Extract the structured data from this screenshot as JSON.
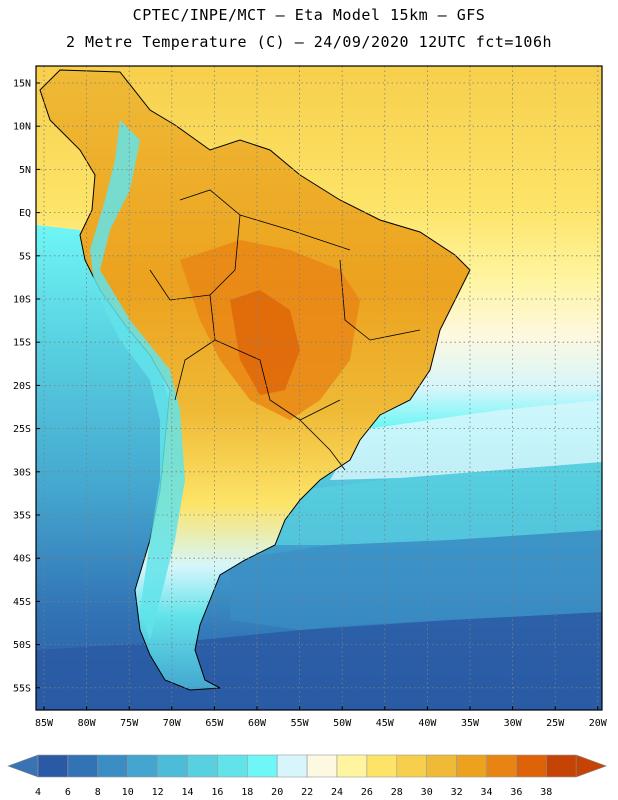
{
  "title_line1": "CPTEC/INPE/MCT –  Eta Model 15km – GFS",
  "title_line2": "2 Metre Temperature (C) – 24/09/2020 12UTC fct=106h",
  "lat_labels": [
    "15N",
    "10N",
    "5N",
    "EQ",
    "5S",
    "10S",
    "15S",
    "20S",
    "25S",
    "30S",
    "35S",
    "40S",
    "45S",
    "50S",
    "55S"
  ],
  "lon_labels": [
    "85W",
    "80W",
    "75W",
    "70W",
    "65W",
    "60W",
    "55W",
    "50W",
    "45W",
    "40W",
    "35W",
    "30W",
    "25W",
    "20W"
  ],
  "colorbar": {
    "labels": [
      "4",
      "6",
      "8",
      "10",
      "12",
      "14",
      "16",
      "18",
      "20",
      "22",
      "24",
      "26",
      "28",
      "30",
      "32",
      "34",
      "36",
      "38"
    ],
    "colors": [
      "#2a5aa5",
      "#3173b5",
      "#3b8ec4",
      "#44a6cf",
      "#4dbcd8",
      "#58d0e0",
      "#62e3ea",
      "#6ff6f6",
      "#d6f6fb",
      "#fdf8e0",
      "#fff5a0",
      "#fde468",
      "#f7cf4c",
      "#efba36",
      "#eca21e",
      "#e88414",
      "#de6207",
      "#c54405"
    ],
    "under_color": "#3a73b4",
    "over_color": "#c54405"
  },
  "legend_icons": [
    "arrow-left-icon",
    "arrow-right-icon"
  ]
}
